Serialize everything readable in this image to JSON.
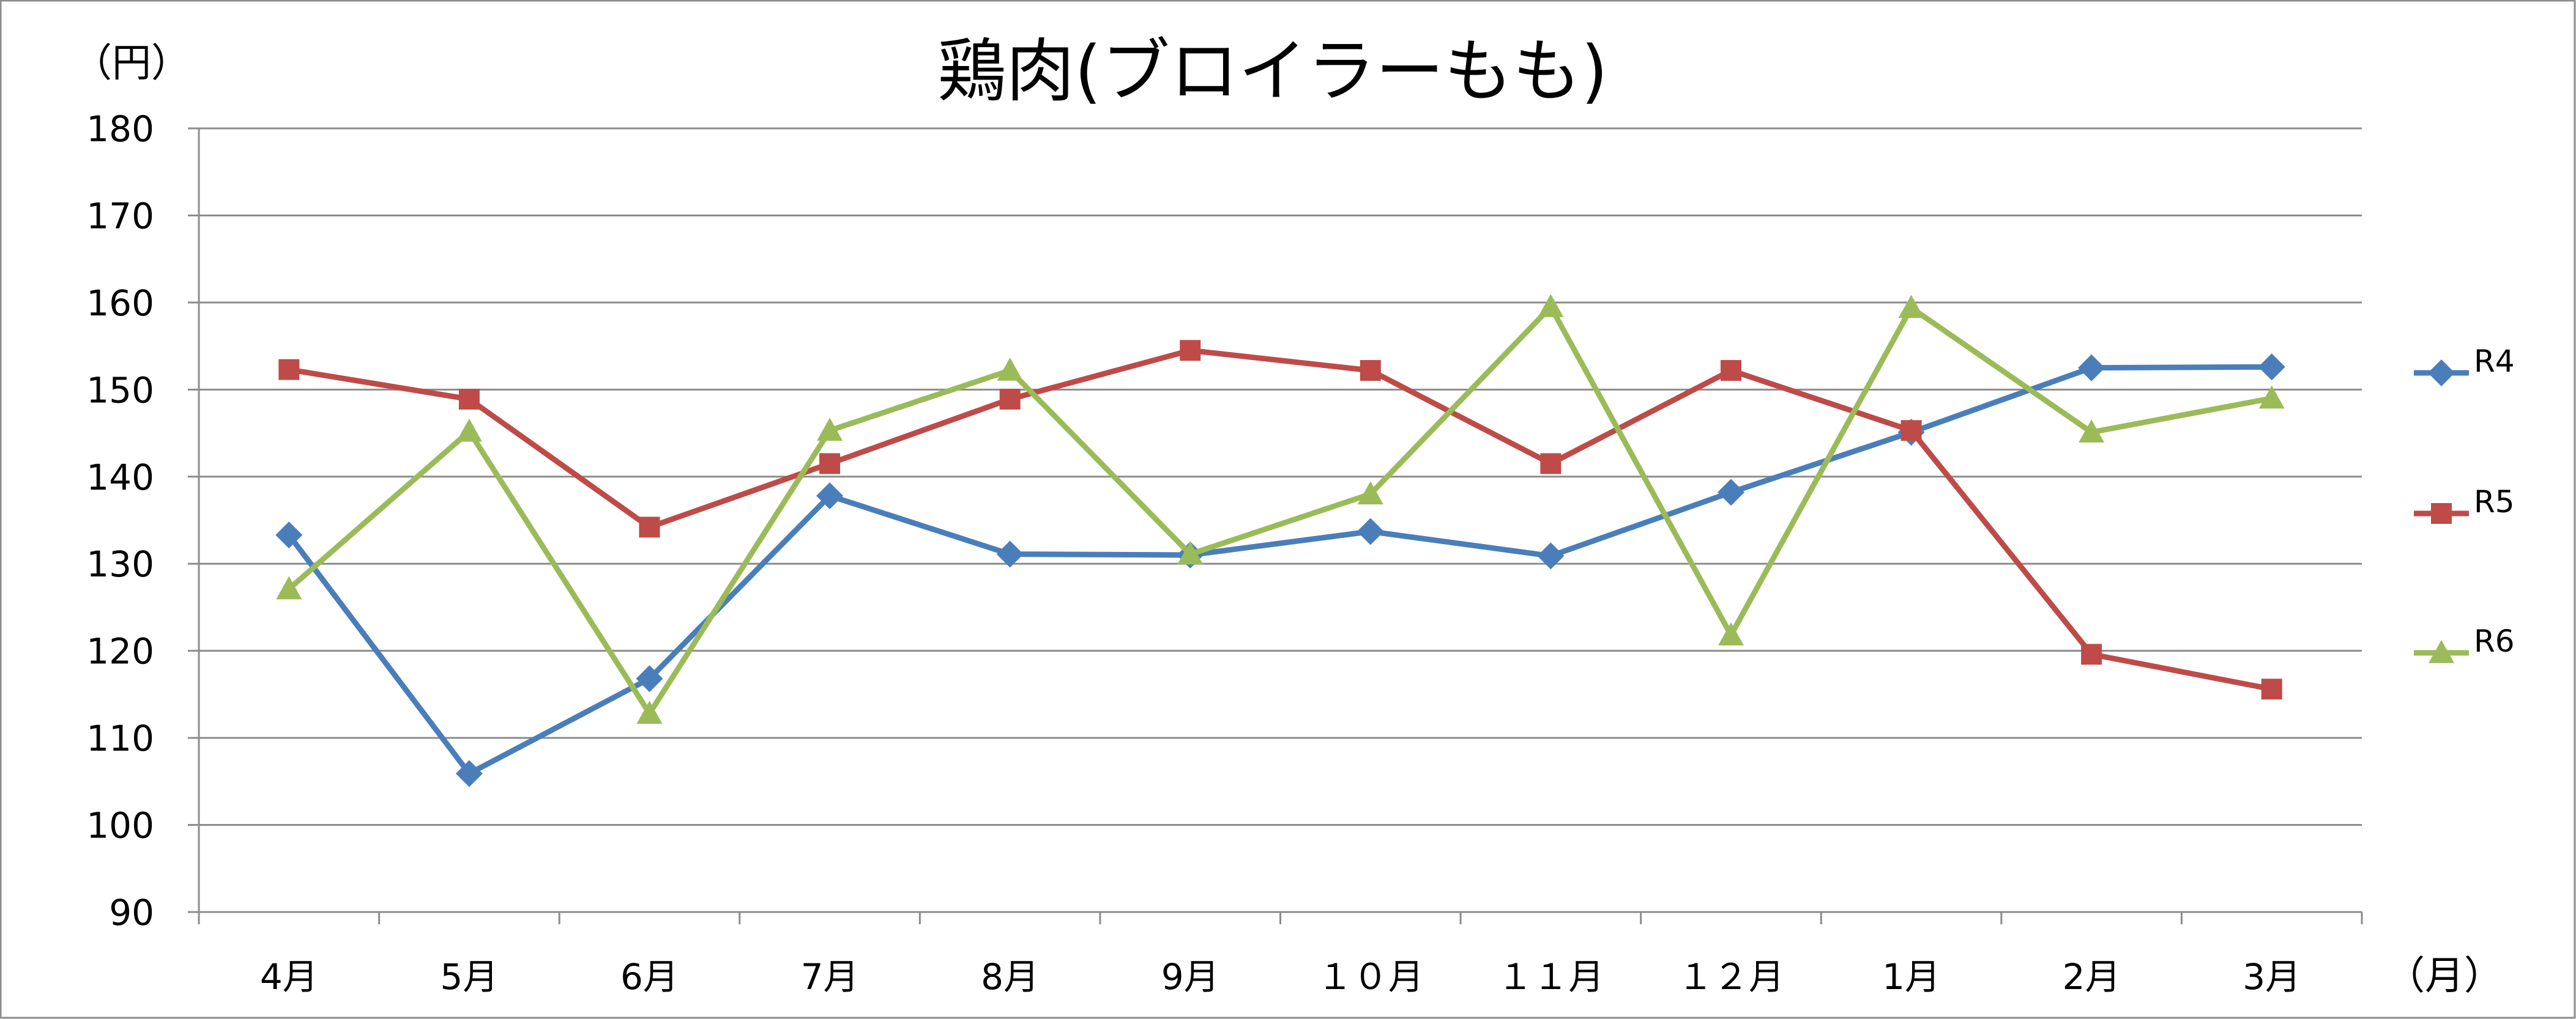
{
  "chart_data": {
    "type": "line",
    "title": "鶏肉(ブロイラーもも)",
    "ylabel": "（円）",
    "xlabel": "（月）",
    "ylim": [
      90,
      180
    ],
    "yticks": [
      90,
      100,
      110,
      120,
      130,
      140,
      150,
      160,
      170,
      180
    ],
    "grid": true,
    "legend": "right",
    "categories": [
      "4月",
      "5月",
      "6月",
      "7月",
      "8月",
      "9月",
      "１０月",
      "１１月",
      "１２月",
      "1月",
      "2月",
      "3月"
    ],
    "series": [
      {
        "name": "R4",
        "color": "#4A7EBB",
        "marker": "diamond",
        "values": [
          133.3,
          105.9,
          116.8,
          137.8,
          131.1,
          131.0,
          133.7,
          130.9,
          138.2,
          145.1,
          152.5,
          152.6
        ]
      },
      {
        "name": "R5",
        "color": "#BE4B48",
        "marker": "square",
        "values": [
          152.3,
          148.9,
          134.2,
          141.5,
          148.9,
          154.5,
          152.2,
          141.5,
          152.2,
          145.3,
          119.6,
          115.6
        ]
      },
      {
        "name": "R6",
        "color": "#9BBB59",
        "marker": "triangle",
        "values": [
          127.1,
          145.2,
          112.8,
          145.3,
          152.2,
          131.1,
          138.0,
          159.5,
          121.8,
          159.4,
          145.1,
          149.0
        ]
      }
    ]
  }
}
